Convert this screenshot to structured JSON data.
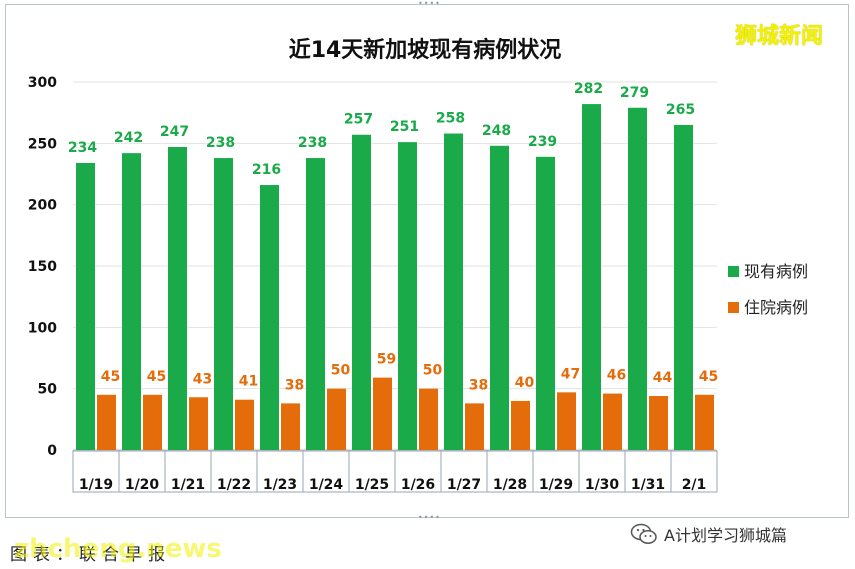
{
  "brand": "狮城新闻",
  "source_label": "图表：联合早报",
  "watermark": "zhcheng.news",
  "wechat": {
    "label": "A计划学习狮城篇",
    "icon": "wechat-icon"
  },
  "colors": {
    "current": "#1aaa4a",
    "hospitalized": "#e46c0a",
    "current_label": "#1aaa4a",
    "hospitalized_label": "#e46c0a"
  },
  "chart_data": {
    "type": "bar",
    "title": "近14天新加坡现有病例状况",
    "categories": [
      "1/19",
      "1/20",
      "1/21",
      "1/22",
      "1/23",
      "1/24",
      "1/25",
      "1/26",
      "1/27",
      "1/28",
      "1/29",
      "1/30",
      "1/31",
      "2/1"
    ],
    "series": [
      {
        "name": "现有病例",
        "values": [
          234,
          242,
          247,
          238,
          216,
          238,
          257,
          251,
          258,
          248,
          239,
          282,
          279,
          265
        ]
      },
      {
        "name": "住院病例",
        "values": [
          45,
          45,
          43,
          41,
          38,
          50,
          59,
          50,
          38,
          40,
          47,
          46,
          44,
          45
        ]
      }
    ],
    "ylim": [
      0,
      300
    ],
    "yticks": [
      0,
      50,
      100,
      150,
      200,
      250,
      300
    ],
    "grid": true,
    "legend": "right",
    "data_labels": true
  }
}
